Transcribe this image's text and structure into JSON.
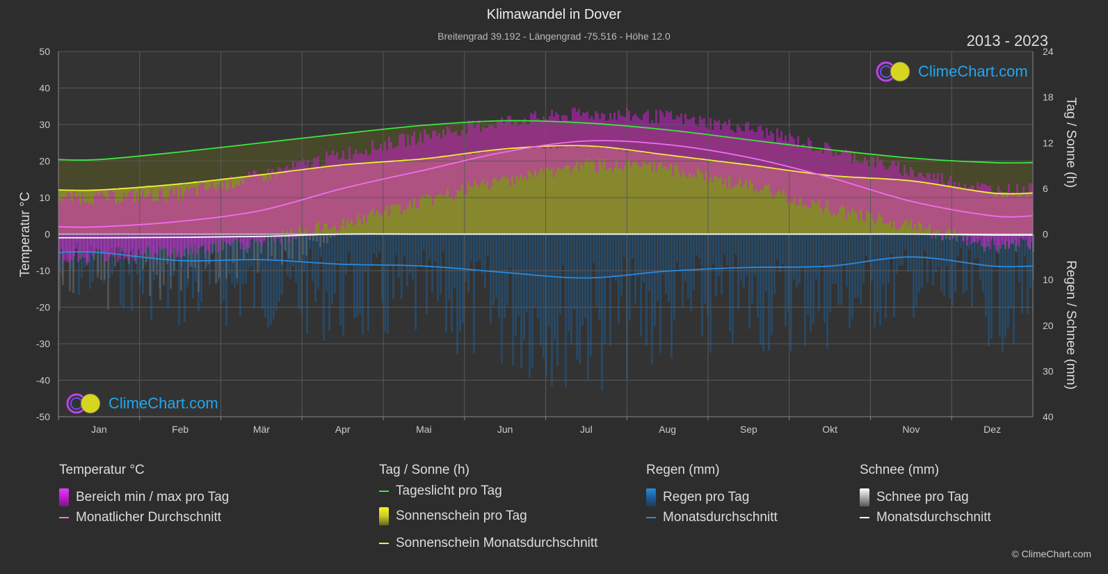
{
  "title": "Klimawandel in Dover",
  "subtitle": "Breitengrad 39.192 - Längengrad -75.516 - Höhe 12.0",
  "years": "2013 - 2023",
  "logo_text": "ClimeChart.com",
  "copyright": "© ClimeChart.com",
  "axes": {
    "left_label": "Temperatur °C",
    "right_top_label": "Tag / Sonne (h)",
    "right_bottom_label": "Regen / Schnee (mm)",
    "left_ticks": [
      "50",
      "40",
      "30",
      "20",
      "10",
      "0",
      "-10",
      "-20",
      "-30",
      "-40",
      "-50"
    ],
    "right_top_ticks": [
      "24",
      "18",
      "12",
      "6",
      "0"
    ],
    "right_bottom_ticks": [
      "10",
      "20",
      "30",
      "40"
    ]
  },
  "legend": {
    "temp_head": "Temperatur °C",
    "temp_range": "Bereich min / max pro Tag",
    "temp_avg": "Monatlicher Durchschnitt",
    "sun_head": "Tag / Sonne (h)",
    "daylight": "Tageslicht pro Tag",
    "sun_day": "Sonnenschein pro Tag",
    "sun_avg": "Sonnenschein Monatsdurchschnitt",
    "rain_head": "Regen (mm)",
    "rain_day": "Regen pro Tag",
    "rain_avg": "Monatsdurchschnitt",
    "snow_head": "Schnee (mm)",
    "snow_day": "Schnee pro Tag",
    "snow_avg": "Monatsdurchschnitt"
  },
  "colors": {
    "background": "#2d2d2d",
    "daylight": "#3ee63e",
    "sunshine_avg": "#f0f03a",
    "temp_avg": "#f06ef0",
    "rain_avg": "#2a8be0",
    "snow_avg": "#ffffff",
    "temp_range": "#d61fd6",
    "sunshine_fill": "#a3a32f",
    "rain_fill": "#1f5a8c",
    "logo": "#22a7f0"
  },
  "chart_data": {
    "type": "area",
    "categories": [
      "Jan",
      "Feb",
      "Mär",
      "Apr",
      "Mai",
      "Jun",
      "Jul",
      "Aug",
      "Sep",
      "Okt",
      "Nov",
      "Dez"
    ],
    "temp_ylim": [
      -50,
      50
    ],
    "sun_ylim": [
      0,
      24
    ],
    "precip_ylim": [
      0,
      40
    ],
    "grid": true,
    "series": [
      {
        "name": "Tageslicht pro Tag",
        "axis": "sun_h",
        "values": [
          9.8,
          10.8,
          12.0,
          13.2,
          14.3,
          14.9,
          14.6,
          13.7,
          12.4,
          11.1,
          10.0,
          9.4
        ]
      },
      {
        "name": "Sonnenschein Monatsdurchschnitt",
        "axis": "sun_h",
        "values": [
          5.8,
          6.6,
          7.8,
          9.1,
          9.9,
          11.2,
          11.6,
          10.4,
          9.1,
          7.7,
          7.0,
          5.4
        ]
      },
      {
        "name": "Monatlicher Durchschnitt",
        "axis": "temp_c",
        "values": [
          2.0,
          3.5,
          6.5,
          12.5,
          17.5,
          22.5,
          25.5,
          24.5,
          21.0,
          15.5,
          9.0,
          5.0
        ]
      },
      {
        "name": "Regen Monatsdurchschnitt",
        "axis": "precip_mm",
        "values": [
          4.0,
          5.8,
          5.6,
          6.6,
          7.0,
          8.4,
          9.6,
          8.1,
          7.3,
          7.0,
          5.0,
          7.0
        ]
      },
      {
        "name": "Schnee Monatsdurchschnitt",
        "axis": "precip_mm",
        "values": [
          0.8,
          0.7,
          0.5,
          0.0,
          0.0,
          0.0,
          0.0,
          0.0,
          0.0,
          0.0,
          0.0,
          0.2
        ]
      }
    ],
    "temp_range_approx": {
      "min": [
        -4,
        -3,
        0,
        5,
        11,
        17,
        21,
        20,
        15,
        9,
        4,
        -1
      ],
      "max": [
        8,
        9,
        14,
        20,
        25,
        29,
        31,
        30,
        27,
        21,
        15,
        10
      ]
    },
    "sunshine_daily_approx": [
      5.8,
      6.6,
      7.8,
      9.1,
      9.9,
      11.2,
      11.6,
      10.4,
      9.1,
      7.7,
      7.0,
      5.4
    ]
  }
}
